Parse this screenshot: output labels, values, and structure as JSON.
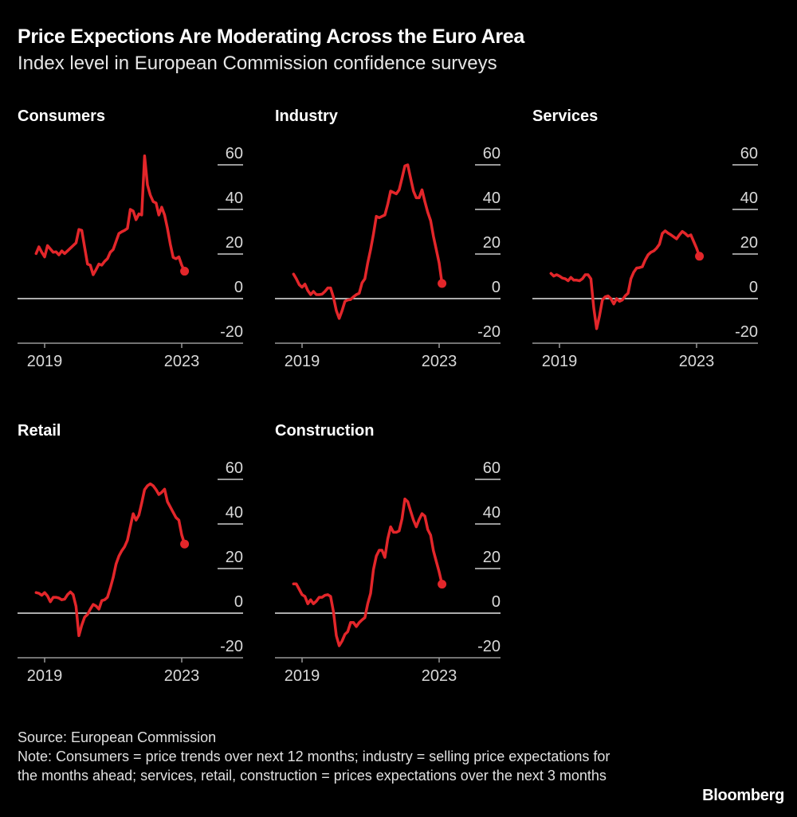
{
  "title": "Price Expections Are Moderating Across the Euro Area",
  "subtitle": "Index level in European Commission confidence surveys",
  "footer": {
    "source": "Source: European Commission",
    "note": "Note: Consumers = price trends over next 12 months; industry = selling price expectations for the months ahead; services, retail, construction = prices expectations over the next 3 months"
  },
  "logo": "Bloomberg",
  "colors": {
    "line": "#e3262a",
    "background": "#000000",
    "grid": "#cccccc"
  },
  "chart_data": [
    {
      "type": "line",
      "title": "Consumers",
      "start": "2018-10",
      "frequency": "monthly",
      "ylim": [
        -20,
        60
      ],
      "yticks": [
        "60",
        "40",
        "20",
        "0",
        "-20"
      ],
      "xticks": [
        "2019",
        "2023"
      ],
      "grid": true,
      "end_marker": true,
      "values": [
        20.2,
        23.2,
        20.8,
        18.7,
        23.8,
        22.3,
        20.8,
        21,
        19.6,
        21.4,
        20.2,
        21.4,
        22.6,
        23.8,
        25,
        31,
        30.6,
        23,
        15.5,
        15,
        10.7,
        13,
        15.5,
        15,
        16.7,
        17.9,
        20.8,
        22,
        25.6,
        29.2,
        30,
        30.6,
        31.5,
        40,
        39.3,
        35.4,
        38,
        37.5,
        64,
        51,
        46.4,
        43.5,
        42.9,
        37.5,
        41,
        37.5,
        31.5,
        24.4,
        18.5,
        17.9,
        18.7,
        15,
        12.3
      ]
    },
    {
      "type": "line",
      "title": "Industry",
      "start": "2018-10",
      "frequency": "monthly",
      "ylim": [
        -20,
        60
      ],
      "yticks": [
        "60",
        "40",
        "20",
        "0",
        "-20"
      ],
      "xticks": [
        "2019",
        "2023"
      ],
      "grid": true,
      "end_marker": true,
      "values": [
        11,
        8.9,
        6.3,
        5.1,
        6.5,
        3.6,
        1.8,
        3.2,
        1.8,
        1.8,
        2,
        3.2,
        4.8,
        4.8,
        0.6,
        -5.4,
        -8.9,
        -5.4,
        -1.2,
        -0.6,
        -0.4,
        0.8,
        1.8,
        2.4,
        7.1,
        8.9,
        16,
        22,
        29,
        36.9,
        36.3,
        36.9,
        37.5,
        42.3,
        48.2,
        47.6,
        47,
        48.8,
        54,
        59.5,
        60,
        54,
        48.2,
        45.2,
        45.2,
        48.8,
        43.5,
        38.7,
        35,
        28,
        22,
        16,
        6.8
      ]
    },
    {
      "type": "line",
      "title": "Services",
      "start": "2018-10",
      "frequency": "monthly",
      "ylim": [
        -20,
        60
      ],
      "yticks": [
        "60",
        "40",
        "20",
        "0",
        "-20"
      ],
      "xticks": [
        "2019",
        "2023"
      ],
      "grid": true,
      "end_marker": true,
      "values": [
        11.3,
        10.1,
        10.7,
        10.1,
        9.2,
        8.9,
        8,
        9.5,
        8.3,
        8.3,
        8,
        8.9,
        10.7,
        10.7,
        8.9,
        -4.2,
        -13.5,
        -7.7,
        -0.6,
        0.8,
        1.2,
        0,
        -2.4,
        0,
        -1.2,
        -0.6,
        1.2,
        2.4,
        8.9,
        11.9,
        13.7,
        13.9,
        14.3,
        17.3,
        19.6,
        20.8,
        21.4,
        22.6,
        24.4,
        29.2,
        30.4,
        29.4,
        28.6,
        27.7,
        26.8,
        28.6,
        30.1,
        29.2,
        28,
        28.6,
        25.6,
        22.6,
        19
      ]
    },
    {
      "type": "line",
      "title": "Retail",
      "start": "2018-10",
      "frequency": "monthly",
      "ylim": [
        -20,
        60
      ],
      "yticks": [
        "60",
        "40",
        "20",
        "0",
        "-20"
      ],
      "xticks": [
        "2019",
        "2023"
      ],
      "grid": true,
      "end_marker": true,
      "values": [
        9.2,
        8.9,
        8,
        9.2,
        7.7,
        5.1,
        7.1,
        7.1,
        6.8,
        6,
        6.3,
        8.3,
        9.5,
        8.3,
        3,
        -10.1,
        -5.4,
        -1.8,
        -0.6,
        1.8,
        3.9,
        3.2,
        1.8,
        5.6,
        6,
        7.1,
        11.3,
        16,
        22,
        25.6,
        28,
        29.8,
        32.7,
        38.7,
        44.6,
        41.7,
        44,
        49.4,
        55.4,
        57.1,
        58,
        57.1,
        55.4,
        53.2,
        54.2,
        55.6,
        50,
        47.6,
        45.2,
        42.9,
        41.7,
        35.1,
        31
      ]
    },
    {
      "type": "line",
      "title": "Construction",
      "start": "2018-10",
      "frequency": "monthly",
      "ylim": [
        -20,
        60
      ],
      "yticks": [
        "60",
        "40",
        "20",
        "0",
        "-20"
      ],
      "xticks": [
        "2019",
        "2023"
      ],
      "grid": true,
      "end_marker": true,
      "values": [
        13.1,
        13.1,
        10.7,
        8.3,
        7.5,
        4.2,
        6,
        4.2,
        5.4,
        7.1,
        7.1,
        8,
        8.3,
        7.5,
        0.6,
        -10.1,
        -14.6,
        -12.5,
        -9.5,
        -8.3,
        -4.2,
        -4.2,
        -6,
        -4.2,
        -3,
        -2,
        4.2,
        8.9,
        19.6,
        25.6,
        28.2,
        28.2,
        25,
        33.3,
        38.7,
        36.3,
        36.3,
        36.9,
        42.3,
        51.2,
        50,
        45.8,
        41.7,
        38.7,
        42,
        44.6,
        43.5,
        37.5,
        35,
        28,
        23.2,
        18.5,
        13
      ]
    }
  ]
}
